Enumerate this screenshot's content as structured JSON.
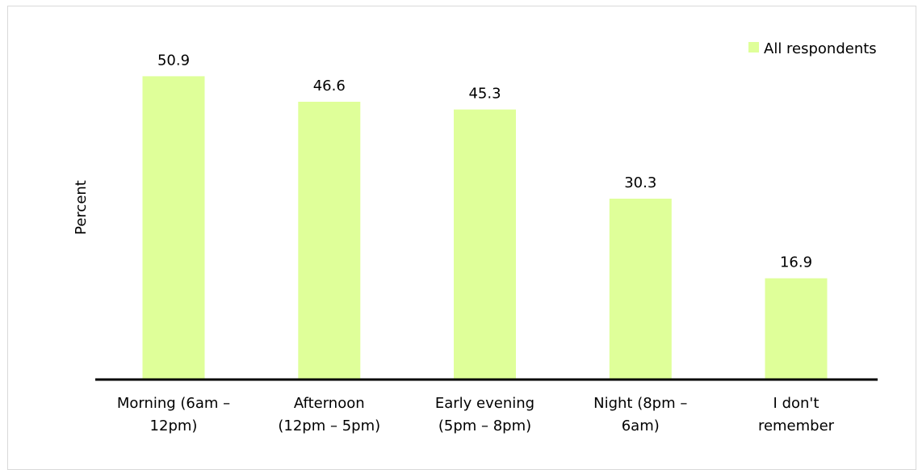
{
  "chart_data": {
    "type": "bar",
    "title": "",
    "xlabel": "",
    "ylabel": "Percent",
    "ylim": [
      0,
      55
    ],
    "grid": false,
    "legend_position": "top-right",
    "categories": [
      [
        "Morning (6am –",
        "12pm)"
      ],
      [
        "Afternoon",
        "(12pm – 5pm)"
      ],
      [
        "Early evening",
        "(5pm – 8pm)"
      ],
      [
        "Night (8pm –",
        "6am)"
      ],
      [
        "I don't",
        "remember"
      ]
    ],
    "series": [
      {
        "name": "All respondents",
        "color": "#dfff99",
        "values": [
          50.9,
          46.6,
          45.3,
          30.3,
          16.9
        ],
        "labels": [
          "50.9",
          "46.6",
          "45.3",
          "30.3",
          "16.9"
        ]
      }
    ]
  }
}
